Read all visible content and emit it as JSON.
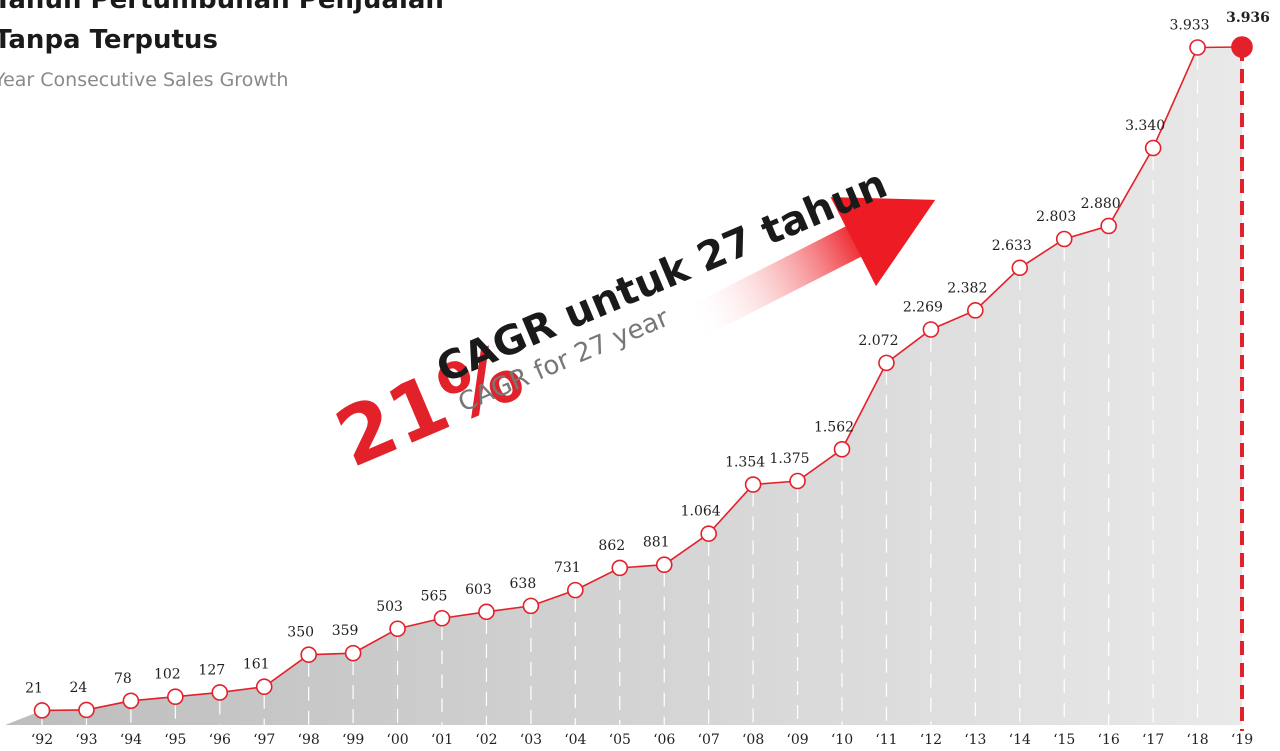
{
  "title": "Tahun Pertumbuhan Penjualan",
  "title_line2": "Tanpa Terputus",
  "subtitle": "Year Consecutive Sales Growth",
  "annotation": {
    "percent": "21%",
    "main": "CAGR untuk 27 tahun",
    "sub": "CAGR for 27 year"
  },
  "chart_data": {
    "type": "area",
    "categories": [
      "‘92",
      "‘93",
      "‘94",
      "‘95",
      "‘96",
      "‘97",
      "‘98",
      "‘99",
      "‘00",
      "‘01",
      "‘02",
      "‘03",
      "‘04",
      "‘05",
      "‘06",
      "‘07",
      "‘08",
      "‘09",
      "‘10",
      "‘11",
      "‘12",
      "‘13",
      "‘14",
      "‘15",
      "‘16",
      "‘17",
      "‘18",
      "‘19"
    ],
    "values": [
      21,
      24,
      78,
      102,
      127,
      161,
      350,
      359,
      503,
      565,
      603,
      638,
      731,
      862,
      881,
      1064,
      1354,
      1375,
      1562,
      2072,
      2269,
      2382,
      2633,
      2803,
      2880,
      3340,
      3933,
      3936
    ],
    "value_labels": [
      "21",
      "24",
      "78",
      "102",
      "127",
      "161",
      "350",
      "359",
      "503",
      "565",
      "603",
      "638",
      "731",
      "862",
      "881",
      "1.064",
      "1.354",
      "1.375",
      "1.562",
      "2.072",
      "2.269",
      "2.382",
      "2.633",
      "2.803",
      "2.880",
      "3.340",
      "3.933",
      "3.936"
    ],
    "color": "#e3212b"
  }
}
